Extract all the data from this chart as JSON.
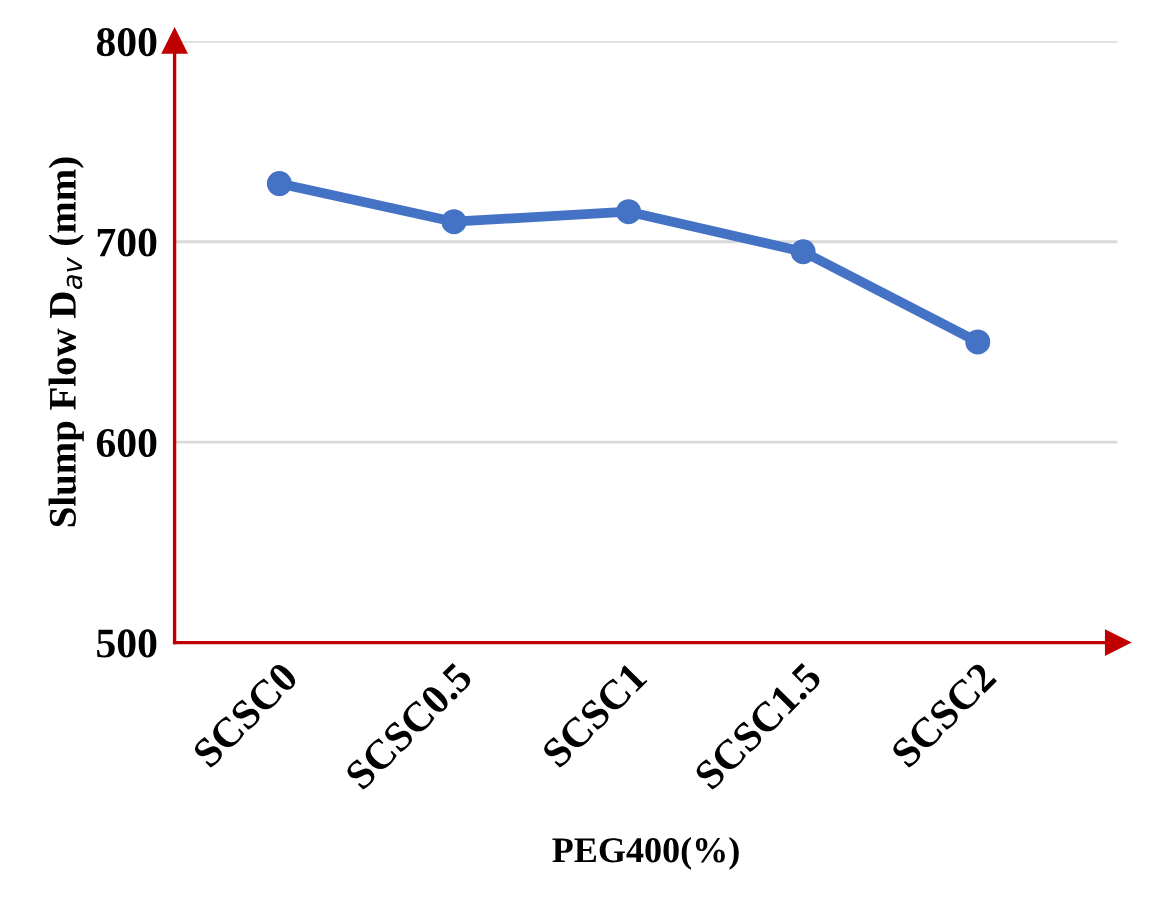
{
  "chart_data": {
    "type": "line",
    "xlabel": "PEG400(%)",
    "ylabel": "Slump Flow D$_{av}$ (mm)",
    "categories": [
      "SCSC0",
      "SCSC0.5",
      "SCSC1",
      "SCSC1.5",
      "SCSC2"
    ],
    "series": [
      {
        "color": "#4472c4",
        "values": [
          729,
          710,
          715,
          695,
          650
        ]
      }
    ],
    "ylim": [
      500,
      800
    ],
    "yticks": [
      500,
      600,
      700,
      800
    ],
    "grid": "y",
    "marker": "circle",
    "line_style": "solid",
    "legend": false
  }
}
